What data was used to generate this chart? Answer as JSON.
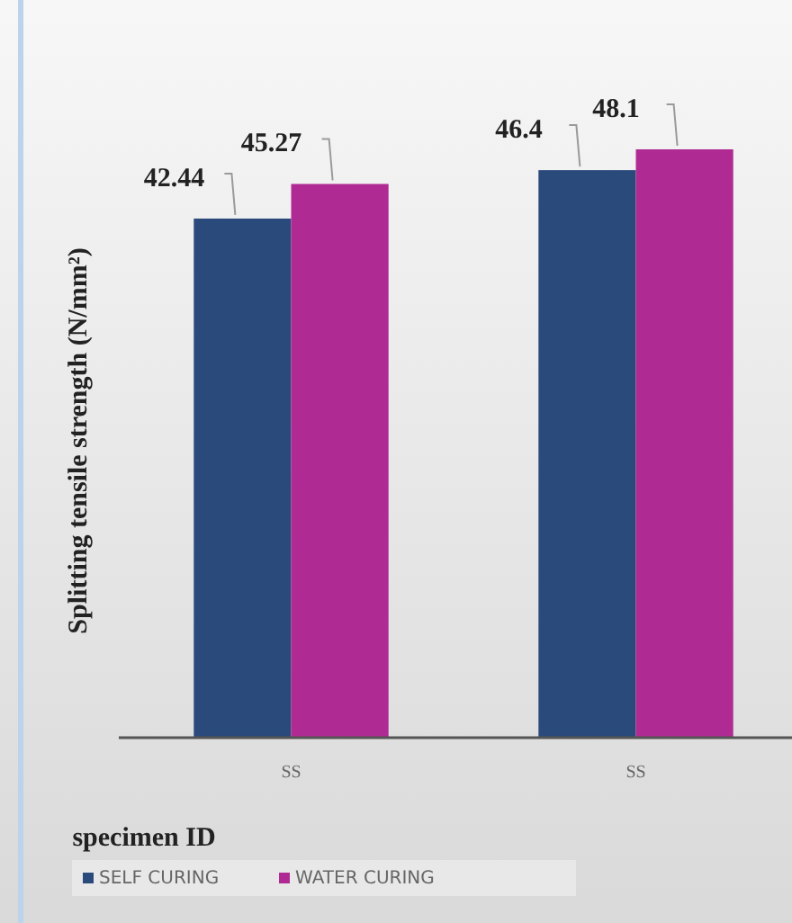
{
  "chart_data": {
    "type": "bar",
    "xlabel": "specimen ID",
    "ylabel": "Splitting tensile strength (N/mm²)",
    "categories": [
      "SS",
      "SS"
    ],
    "series": [
      {
        "name": "SELF CURING",
        "color": "#2b4a7c",
        "values": [
          42.44,
          46.4
        ]
      },
      {
        "name": "WATER CURING",
        "color": "#b02a93",
        "values": [
          45.27,
          48.1
        ]
      }
    ],
    "data_labels": true,
    "legend": "bottom left",
    "tick_labels": "x"
  }
}
